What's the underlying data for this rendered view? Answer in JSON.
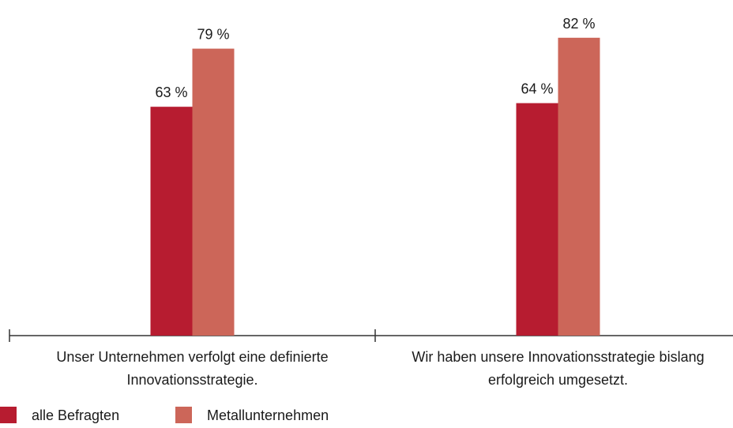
{
  "chart_data": {
    "type": "bar",
    "categories": [
      "Unser Unternehmen verfolgt eine definierte Innovationsstrategie.",
      "Wir haben unsere Innovationsstrategie bislang erfolgreich umgesetzt."
    ],
    "series": [
      {
        "name": "alle Befragten",
        "color": "#b71c30",
        "values": [
          63,
          64
        ],
        "value_labels": [
          "63 %",
          "64 %"
        ]
      },
      {
        "name": "Metallunternehmen",
        "color": "#cc6659",
        "values": [
          79,
          82
        ],
        "value_labels": [
          "79 %",
          "82 %"
        ]
      }
    ],
    "ylim": [
      0,
      100
    ]
  }
}
